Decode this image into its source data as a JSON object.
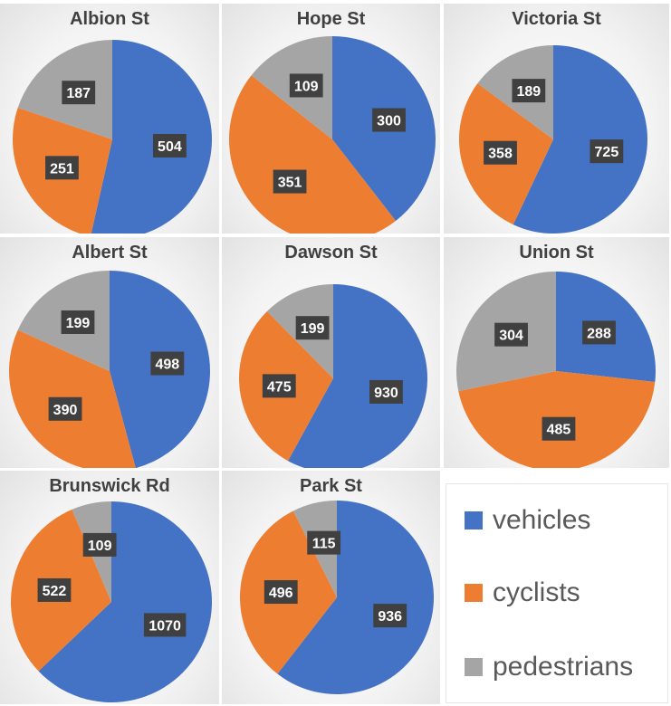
{
  "chart_data": {
    "type": "pie",
    "legend": [
      {
        "name": "vehicles",
        "color": "#4472C4"
      },
      {
        "name": "cyclists",
        "color": "#ED7D31"
      },
      {
        "name": "pedestrians",
        "color": "#A5A5A5"
      }
    ],
    "charts": [
      {
        "title": "Albion St",
        "values": [
          504,
          251,
          187
        ]
      },
      {
        "title": "Hope St",
        "values": [
          300,
          351,
          109
        ]
      },
      {
        "title": "Victoria St",
        "values": [
          725,
          358,
          189
        ]
      },
      {
        "title": "Albert St",
        "values": [
          498,
          390,
          199
        ]
      },
      {
        "title": "Dawson St",
        "values": [
          930,
          475,
          199
        ]
      },
      {
        "title": "Union St",
        "values": [
          288,
          485,
          304
        ]
      },
      {
        "title": "Brunswick Rd",
        "values": [
          1070,
          522,
          109
        ]
      },
      {
        "title": "Park St",
        "values": [
          936,
          496,
          115
        ]
      }
    ]
  }
}
